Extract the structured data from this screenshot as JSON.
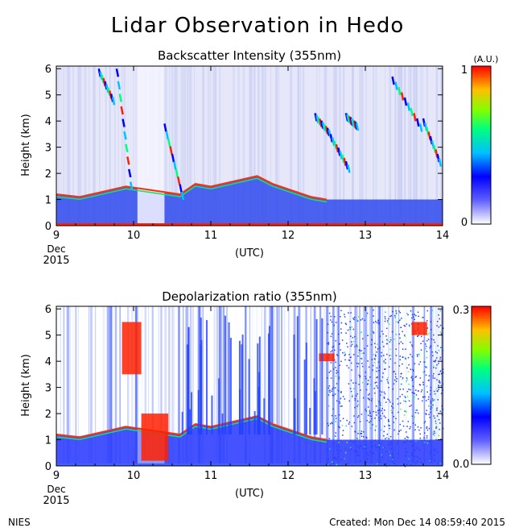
{
  "title": "Lidar Observation in Hedo",
  "footer": {
    "left": "NIES",
    "created": "Created: Mon Dec 14 08:59:40 2015"
  },
  "chart_data": [
    {
      "type": "heatmap",
      "title": "Backscatter Intensity (355nm)",
      "ylabel": "Height (km)",
      "xlabel": "(UTC)",
      "x_ticks": [
        "9",
        "10",
        "11",
        "12",
        "13",
        "14"
      ],
      "x_start_label": [
        "Dec",
        "2015"
      ],
      "y_ticks": [
        "0",
        "1",
        "2",
        "3",
        "4",
        "5",
        "6"
      ],
      "xlim": [
        9,
        14
      ],
      "ylim": [
        0,
        6.1
      ],
      "colorbar": {
        "unit": "(A.U.)",
        "min_label": "0",
        "max_label": "1",
        "range": [
          0,
          1
        ]
      },
      "features": {
        "boundary_layer_top_km": [
          [
            9.0,
            1.2
          ],
          [
            9.3,
            1.1
          ],
          [
            9.6,
            1.3
          ],
          [
            9.9,
            1.5
          ],
          [
            10.6,
            1.2
          ],
          [
            10.8,
            1.6
          ],
          [
            11.0,
            1.5
          ],
          [
            11.3,
            1.7
          ],
          [
            11.6,
            1.9
          ],
          [
            11.8,
            1.6
          ],
          [
            12.0,
            1.4
          ],
          [
            12.3,
            1.1
          ],
          [
            12.5,
            1.0
          ]
        ],
        "cloud_layers": [
          {
            "x": [
              9.55,
              9.75
            ],
            "y": [
              6.0,
              4.8
            ]
          },
          {
            "x": [
              9.78,
              9.98
            ],
            "y": [
              6.0,
              1.2
            ]
          },
          {
            "x": [
              10.4,
              10.65
            ],
            "y": [
              3.9,
              1.0
            ]
          },
          {
            "x": [
              12.35,
              12.55
            ],
            "y": [
              4.3,
              3.6
            ]
          },
          {
            "x": [
              12.55,
              12.8
            ],
            "y": [
              3.5,
              2.2
            ]
          },
          {
            "x": [
              12.75,
              12.9
            ],
            "y": [
              4.3,
              3.9
            ]
          },
          {
            "x": [
              13.35,
              13.75
            ],
            "y": [
              5.7,
              3.7
            ]
          },
          {
            "x": [
              13.75,
              13.98
            ],
            "y": [
              4.1,
              2.4
            ]
          }
        ]
      }
    },
    {
      "type": "heatmap",
      "title": "Depolarization ratio (355nm)",
      "ylabel": "Height (km)",
      "xlabel": "(UTC)",
      "x_ticks": [
        "9",
        "10",
        "11",
        "12",
        "13",
        "14"
      ],
      "x_start_label": [
        "Dec",
        "2015"
      ],
      "y_ticks": [
        "0",
        "1",
        "2",
        "3",
        "4",
        "5",
        "6"
      ],
      "xlim": [
        9,
        14
      ],
      "ylim": [
        0,
        6.1
      ],
      "colorbar": {
        "unit": "",
        "min_label": "0.0",
        "max_label": "0.3",
        "range": [
          0,
          0.3
        ]
      },
      "features": {
        "high_depol_regions": [
          {
            "x": [
              9.85,
              10.1
            ],
            "y": [
              5.5,
              3.5
            ]
          },
          {
            "x": [
              10.1,
              10.45
            ],
            "y": [
              2.0,
              0.2
            ]
          },
          {
            "x": [
              12.4,
              12.6
            ],
            "y": [
              4.3,
              4.0
            ]
          },
          {
            "x": [
              13.6,
              13.8
            ],
            "y": [
              5.5,
              5.0
            ]
          }
        ]
      }
    }
  ]
}
